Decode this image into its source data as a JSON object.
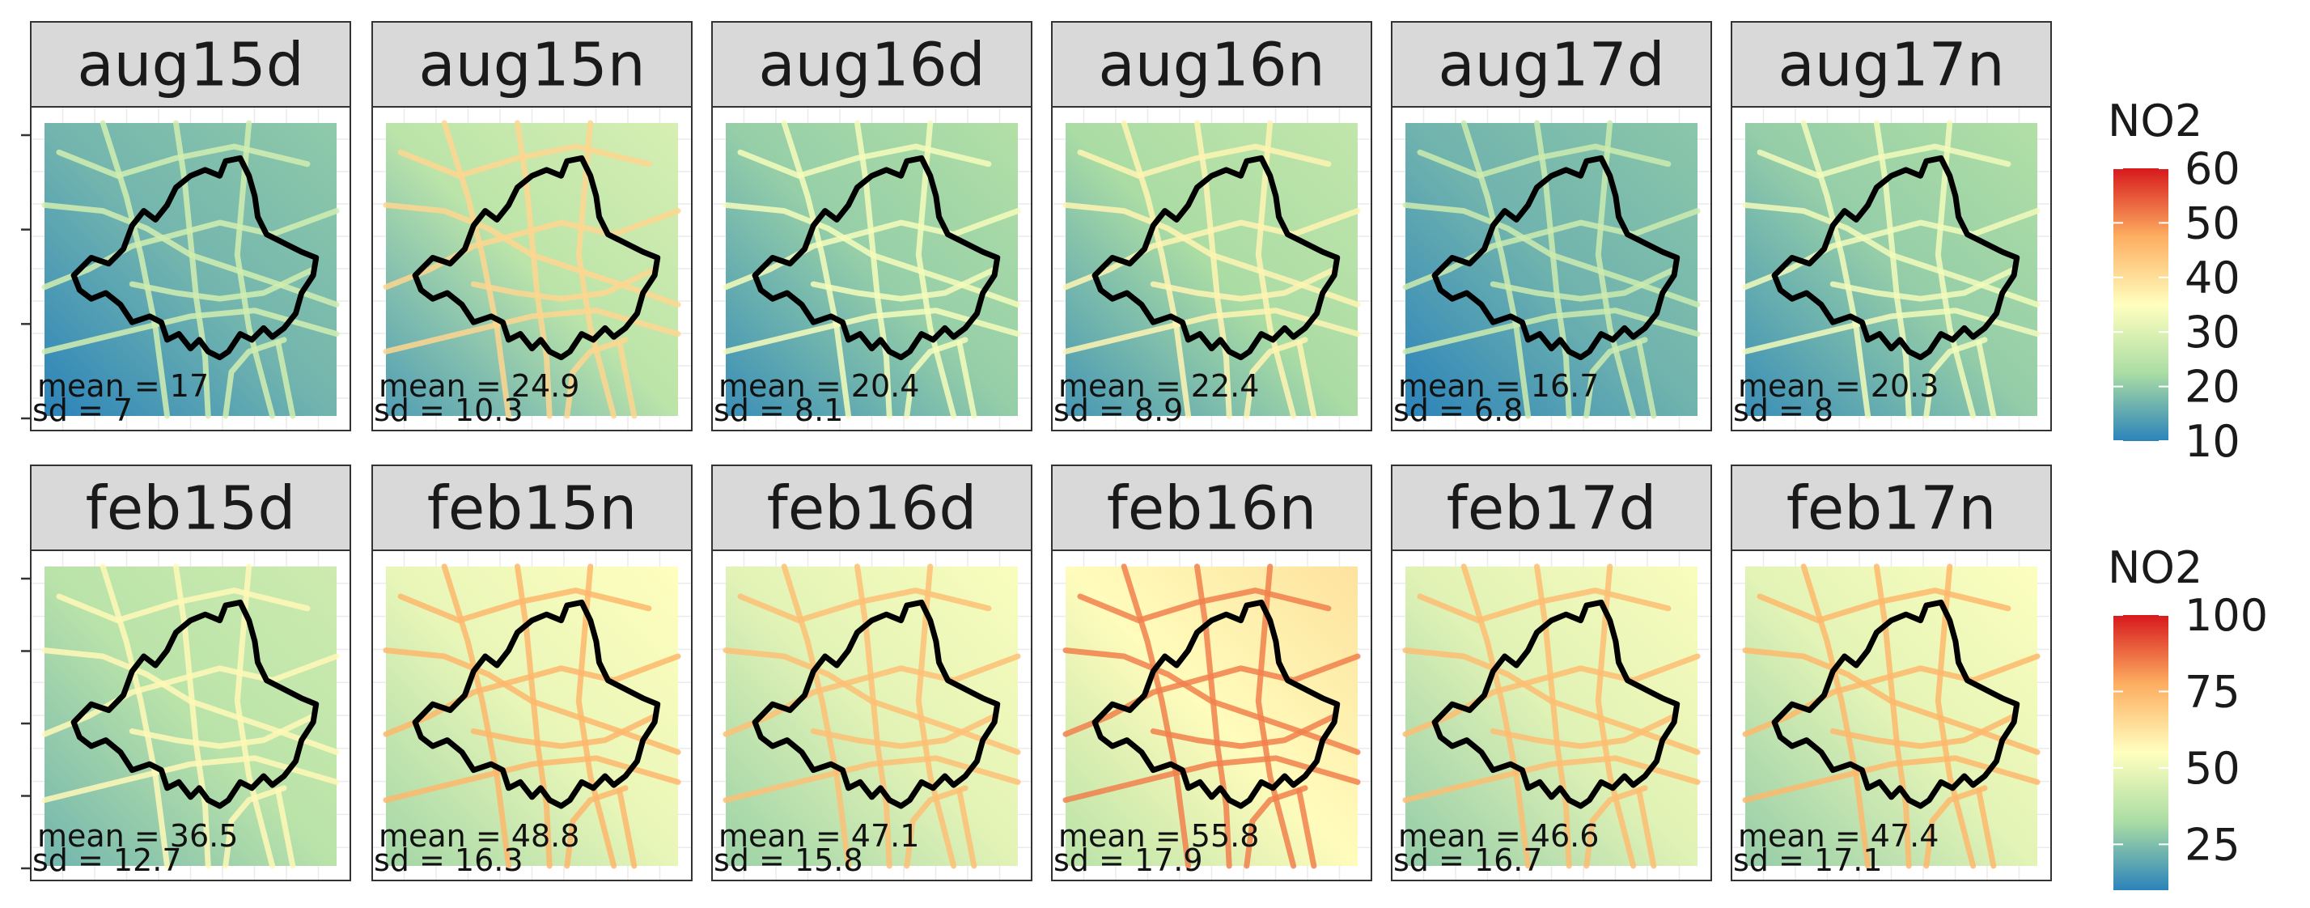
{
  "chart_data": {
    "type": "heatmap",
    "facets": [
      {
        "row": "august",
        "legend": {
          "title": "NO2",
          "ticks": [
            10,
            20,
            30,
            40,
            50,
            60
          ],
          "range": [
            10,
            60
          ]
        },
        "panels": [
          {
            "label": "aug15d",
            "mean_label": "mean = 17",
            "sd_label": "sd = 7",
            "mean": 17,
            "sd": 7
          },
          {
            "label": "aug15n",
            "mean_label": "mean = 24.9",
            "sd_label": "sd = 10.3",
            "mean": 24.9,
            "sd": 10.3
          },
          {
            "label": "aug16d",
            "mean_label": "mean = 20.4",
            "sd_label": "sd = 8.1",
            "mean": 20.4,
            "sd": 8.1
          },
          {
            "label": "aug16n",
            "mean_label": "mean = 22.4",
            "sd_label": "sd = 8.9",
            "mean": 22.4,
            "sd": 8.9
          },
          {
            "label": "aug17d",
            "mean_label": "mean = 16.7",
            "sd_label": "sd = 6.8",
            "mean": 16.7,
            "sd": 6.8
          },
          {
            "label": "aug17n",
            "mean_label": "mean = 20.3",
            "sd_label": "sd = 8",
            "mean": 20.3,
            "sd": 8
          }
        ]
      },
      {
        "row": "february",
        "legend": {
          "title": "NO2",
          "ticks": [
            25,
            50,
            75,
            100
          ],
          "range": [
            10,
            100
          ]
        },
        "panels": [
          {
            "label": "feb15d",
            "mean_label": "mean = 36.5",
            "sd_label": "sd = 12.7",
            "mean": 36.5,
            "sd": 12.7
          },
          {
            "label": "feb15n",
            "mean_label": "mean = 48.8",
            "sd_label": "sd = 16.3",
            "mean": 48.8,
            "sd": 16.3
          },
          {
            "label": "feb16d",
            "mean_label": "mean = 47.1",
            "sd_label": "sd = 15.8",
            "mean": 47.1,
            "sd": 15.8
          },
          {
            "label": "feb16n",
            "mean_label": "mean = 55.8",
            "sd_label": "sd = 17.9",
            "mean": 55.8,
            "sd": 17.9
          },
          {
            "label": "feb17d",
            "mean_label": "mean = 46.6",
            "sd_label": "sd = 16.7",
            "mean": 46.6,
            "sd": 16.7
          },
          {
            "label": "feb17n",
            "mean_label": "mean = 47.4",
            "sd_label": "sd = 17.1",
            "mean": 47.4,
            "sd": 17.1
          }
        ]
      }
    ],
    "colormap": [
      "#2b83ba",
      "#abdda4",
      "#ffffbf",
      "#fdae61",
      "#d7191c"
    ],
    "colormap_name": "Spectral (reversed)",
    "boundary_color": "#000000",
    "strip_background": "#d9d9d9",
    "grid": true
  }
}
